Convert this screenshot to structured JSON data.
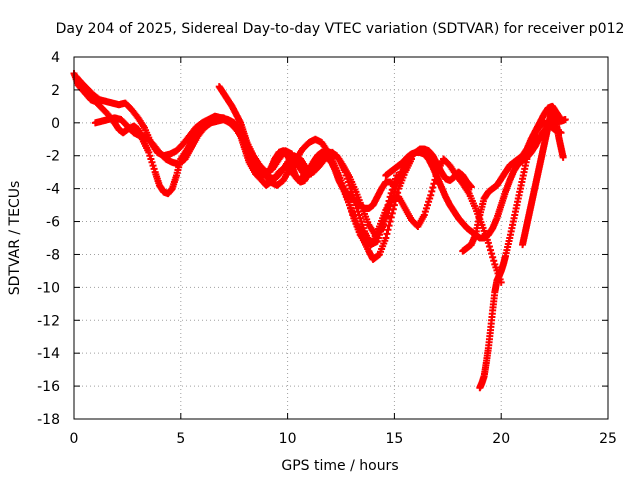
{
  "chart_data": {
    "type": "scatter",
    "title": "Day 204 of 2025, Sidereal Day-to-day VTEC variation (SDTVAR) for receiver p012",
    "xlabel": "GPS time / hours",
    "ylabel": "SDTVAR / TECUs",
    "xlim": [
      0,
      25
    ],
    "ylim": [
      -18,
      4
    ],
    "xticks": [
      0,
      5,
      10,
      15,
      20,
      25
    ],
    "yticks": [
      4,
      2,
      0,
      -2,
      -4,
      -6,
      -8,
      -10,
      -12,
      -14,
      -16,
      -18
    ],
    "grid": true,
    "marker_color": "#ff0000",
    "series": [
      {
        "x": [
          0.0,
          0.2,
          0.4,
          0.6,
          0.8,
          1.0,
          1.3,
          1.6,
          1.9,
          2.1,
          2.3,
          2.5,
          2.8,
          3.0,
          3.2,
          3.5,
          3.8,
          4.0,
          4.2,
          4.4,
          4.6,
          4.8,
          5.0,
          5.3,
          5.6,
          5.9,
          6.2,
          6.5,
          6.8,
          7.0,
          7.2,
          7.5,
          7.8,
          8.0,
          8.2,
          8.5,
          8.8,
          9.0,
          9.3,
          9.6,
          9.9,
          10.2,
          10.5,
          10.8,
          11.1,
          11.4,
          11.7,
          12.0,
          12.3,
          12.6,
          12.9,
          13.2,
          13.5,
          13.8,
          14.0,
          14.3,
          14.6,
          14.9,
          15.2,
          15.5,
          15.8
        ],
        "y": [
          3.0,
          2.3,
          2.0,
          1.7,
          1.4,
          1.3,
          0.9,
          0.5,
          0.0,
          -0.4,
          -0.6,
          -0.4,
          -0.2,
          -0.4,
          -1.0,
          -1.8,
          -3.0,
          -3.8,
          -4.2,
          -4.3,
          -4.0,
          -3.2,
          -2.2,
          -1.6,
          -0.9,
          -0.5,
          -0.2,
          0.1,
          0.3,
          0.3,
          0.1,
          -0.2,
          -0.8,
          -1.6,
          -2.4,
          -3.1,
          -3.5,
          -3.8,
          -3.5,
          -3.0,
          -2.7,
          -3.0,
          -3.5,
          -3.2,
          -2.6,
          -2.1,
          -2.0,
          -2.3,
          -3.0,
          -4.0,
          -5.0,
          -6.0,
          -7.0,
          -7.8,
          -8.3,
          -8.0,
          -7.0,
          -5.5,
          -4.0,
          -3.0,
          -2.2
        ]
      },
      {
        "x": [
          0.1,
          0.3,
          0.6,
          0.9,
          1.2,
          1.5,
          1.8,
          2.1,
          2.4,
          2.7,
          3.0,
          3.3,
          3.6,
          3.9,
          4.2,
          4.5,
          4.8,
          5.1,
          5.4,
          5.7,
          6.0,
          6.3,
          6.6,
          6.9,
          7.2,
          7.5,
          7.8,
          8.1,
          8.4,
          8.7,
          9.0,
          9.3,
          9.6,
          9.9,
          10.2,
          10.5,
          10.8,
          11.1,
          11.4,
          11.7,
          12.0,
          12.3,
          12.6,
          12.9,
          13.2,
          13.5,
          13.8,
          14.1,
          14.4,
          14.7,
          15.0,
          15.3
        ],
        "y": [
          2.8,
          2.5,
          2.1,
          1.7,
          1.4,
          1.3,
          1.2,
          1.1,
          1.2,
          0.8,
          0.3,
          -0.3,
          -1.2,
          -1.8,
          -2.0,
          -1.9,
          -1.7,
          -1.3,
          -0.8,
          -0.3,
          0.0,
          0.2,
          0.4,
          0.3,
          0.2,
          0.0,
          -0.5,
          -1.2,
          -2.0,
          -2.6,
          -3.0,
          -2.8,
          -2.2,
          -1.7,
          -1.9,
          -2.6,
          -3.2,
          -3.1,
          -2.6,
          -2.1,
          -1.8,
          -2.0,
          -2.6,
          -3.3,
          -4.2,
          -5.2,
          -6.2,
          -6.8,
          -6.5,
          -5.5,
          -4.2,
          -3.0
        ]
      },
      {
        "x": [
          1.0,
          1.3,
          1.6,
          1.9,
          2.2,
          2.5,
          2.8,
          3.1,
          3.4,
          3.7,
          4.0,
          4.3,
          4.6,
          4.9,
          5.2,
          5.5,
          5.8,
          6.1,
          6.4,
          6.7,
          7.0,
          7.3,
          7.6,
          7.9,
          8.2,
          8.5,
          8.8,
          9.1,
          9.4,
          9.7,
          10.0,
          10.3,
          10.6,
          10.9,
          11.2,
          11.5,
          11.8,
          12.1,
          12.4,
          12.7,
          13.0,
          13.3,
          13.6,
          13.9,
          14.2,
          14.5,
          14.8,
          15.1
        ],
        "y": [
          0.0,
          0.1,
          0.2,
          0.3,
          0.2,
          -0.2,
          -0.6,
          -0.8,
          -0.9,
          -1.3,
          -1.8,
          -2.2,
          -2.4,
          -2.5,
          -2.2,
          -1.5,
          -0.8,
          -0.3,
          0.0,
          0.1,
          0.2,
          0.0,
          -0.4,
          -1.0,
          -1.6,
          -2.3,
          -2.9,
          -3.3,
          -3.4,
          -3.0,
          -2.4,
          -2.0,
          -2.2,
          -2.8,
          -3.0,
          -2.6,
          -2.1,
          -1.8,
          -2.2,
          -3.0,
          -4.2,
          -5.4,
          -6.6,
          -7.4,
          -7.2,
          -6.0,
          -4.5,
          -3.2
        ]
      },
      {
        "x": [
          6.8,
          7.0,
          7.2,
          7.4,
          7.6,
          7.8,
          8.0,
          8.2,
          8.4,
          8.6,
          8.8,
          9.0,
          9.2,
          9.4,
          9.6,
          9.8,
          10.0,
          10.2,
          10.4,
          10.6,
          10.8,
          11.0,
          11.2,
          11.4,
          11.6,
          11.8,
          12.0,
          12.2,
          12.4,
          12.6,
          12.8,
          13.0,
          13.2,
          13.4,
          13.6,
          13.8,
          14.0,
          14.2,
          14.4,
          14.6,
          14.8,
          15.0,
          15.2,
          15.4,
          15.6,
          15.8,
          16.0,
          16.2,
          16.4,
          16.6,
          16.8,
          17.0,
          17.2,
          17.4,
          17.6,
          17.8,
          18.0,
          18.2,
          18.4,
          18.6
        ],
        "y": [
          2.2,
          1.8,
          1.4,
          1.0,
          0.5,
          0.0,
          -0.8,
          -1.6,
          -2.3,
          -2.8,
          -3.1,
          -3.2,
          -2.8,
          -2.2,
          -1.8,
          -1.7,
          -2.0,
          -2.6,
          -3.3,
          -3.6,
          -3.5,
          -3.0,
          -2.4,
          -2.0,
          -1.8,
          -1.9,
          -2.2,
          -2.8,
          -3.5,
          -4.0,
          -4.3,
          -4.6,
          -4.8,
          -5.0,
          -5.2,
          -5.2,
          -5.0,
          -4.5,
          -4.0,
          -3.6,
          -3.6,
          -3.8,
          -3.4,
          -2.9,
          -2.4,
          -2.0,
          -1.8,
          -1.6,
          -1.6,
          -1.7,
          -2.0,
          -2.5,
          -3.0,
          -3.4,
          -3.5,
          -3.3,
          -3.0,
          -3.2,
          -3.6,
          -3.9
        ]
      },
      {
        "x": [
          8.6,
          8.9,
          9.2,
          9.5,
          9.8,
          10.1,
          10.4,
          10.7,
          11.0,
          11.3,
          11.6,
          11.9,
          12.2,
          12.5,
          12.8,
          13.1,
          13.4,
          13.7,
          14.0,
          14.3,
          14.6,
          14.9,
          15.2,
          15.5,
          15.8,
          16.1,
          16.4,
          16.7,
          17.0,
          17.3,
          17.6,
          17.9,
          18.2,
          18.5,
          18.8,
          19.1,
          19.4,
          19.7,
          20.0
        ],
        "y": [
          -2.5,
          -3.0,
          -3.6,
          -3.8,
          -3.5,
          -2.8,
          -2.2,
          -1.6,
          -1.2,
          -1.0,
          -1.2,
          -1.8,
          -2.6,
          -3.5,
          -4.6,
          -5.8,
          -6.8,
          -7.4,
          -7.2,
          -6.3,
          -5.3,
          -4.6,
          -4.5,
          -5.2,
          -5.9,
          -6.3,
          -5.6,
          -4.4,
          -3.0,
          -2.2,
          -2.6,
          -3.2,
          -3.7,
          -4.3,
          -5.2,
          -6.2,
          -7.3,
          -8.6,
          -9.7
        ]
      },
      {
        "x": [
          14.6,
          14.8,
          15.0,
          15.2,
          15.4,
          15.6,
          15.8,
          16.0,
          16.2,
          16.4,
          16.6,
          16.8,
          17.0,
          17.2,
          17.4,
          17.6,
          17.8,
          18.0,
          18.2,
          18.4,
          18.6,
          18.8,
          19.0,
          19.2,
          19.4,
          19.6,
          19.8,
          20.0,
          20.2,
          20.4,
          20.6,
          20.8,
          21.0,
          21.2,
          21.4,
          21.6,
          21.8,
          22.0,
          22.2,
          22.4,
          22.6,
          22.8,
          23.0
        ],
        "y": [
          -3.2,
          -3.0,
          -2.8,
          -2.6,
          -2.4,
          -2.1,
          -1.9,
          -1.8,
          -1.8,
          -1.9,
          -2.2,
          -2.7,
          -3.3,
          -3.9,
          -4.5,
          -5.0,
          -5.4,
          -5.8,
          -6.1,
          -6.4,
          -6.6,
          -6.8,
          -7.0,
          -7.0,
          -6.8,
          -6.4,
          -5.8,
          -5.0,
          -4.2,
          -3.5,
          -2.9,
          -2.5,
          -2.3,
          -2.1,
          -1.8,
          -1.4,
          -0.9,
          -0.5,
          -0.2,
          0.0,
          0.1,
          0.1,
          0.2
        ]
      },
      {
        "x": [
          18.2,
          18.4,
          18.6,
          18.8,
          19.0,
          19.2,
          19.4,
          19.6,
          19.8,
          20.0,
          20.2,
          20.4,
          20.6,
          20.8,
          21.0,
          21.2,
          21.4,
          21.6,
          21.8,
          22.0,
          22.2,
          22.4,
          22.6,
          22.8
        ],
        "y": [
          -7.8,
          -7.6,
          -7.4,
          -6.8,
          -5.6,
          -4.6,
          -4.2,
          -4.0,
          -3.8,
          -3.4,
          -3.0,
          -2.6,
          -2.4,
          -2.2,
          -2.0,
          -1.6,
          -1.0,
          -0.5,
          0.0,
          0.5,
          0.9,
          1.0,
          0.6,
          0.2
        ]
      },
      {
        "x": [
          19.0,
          19.1,
          19.2,
          19.3,
          19.4,
          19.5,
          19.6,
          19.7,
          19.8,
          19.9,
          20.0,
          20.1,
          20.2,
          20.4,
          20.6,
          20.8,
          21.0,
          21.2,
          21.4,
          21.6,
          21.8,
          22.0,
          22.2,
          22.4,
          22.6,
          22.8
        ],
        "y": [
          -16.1,
          -15.8,
          -15.4,
          -14.6,
          -13.7,
          -12.6,
          -11.4,
          -10.3,
          -9.6,
          -9.3,
          -9.0,
          -8.6,
          -8.1,
          -7.0,
          -5.8,
          -4.6,
          -3.4,
          -2.2,
          -1.3,
          -0.6,
          -0.2,
          0.0,
          -0.1,
          -0.3,
          -0.5,
          -0.6
        ]
      },
      {
        "x": [
          21.0,
          21.1,
          21.2,
          21.3,
          21.4,
          21.5,
          21.6,
          21.7,
          21.8,
          21.9,
          22.0,
          22.1,
          22.2,
          22.3,
          22.4,
          22.5,
          22.6,
          22.7,
          22.8,
          22.9
        ],
        "y": [
          -7.4,
          -6.8,
          -6.2,
          -5.6,
          -5.0,
          -4.4,
          -3.8,
          -3.2,
          -2.6,
          -2.0,
          -1.4,
          -0.8,
          -0.2,
          0.4,
          0.8,
          0.5,
          -0.2,
          -0.9,
          -1.5,
          -2.1
        ]
      }
    ]
  }
}
